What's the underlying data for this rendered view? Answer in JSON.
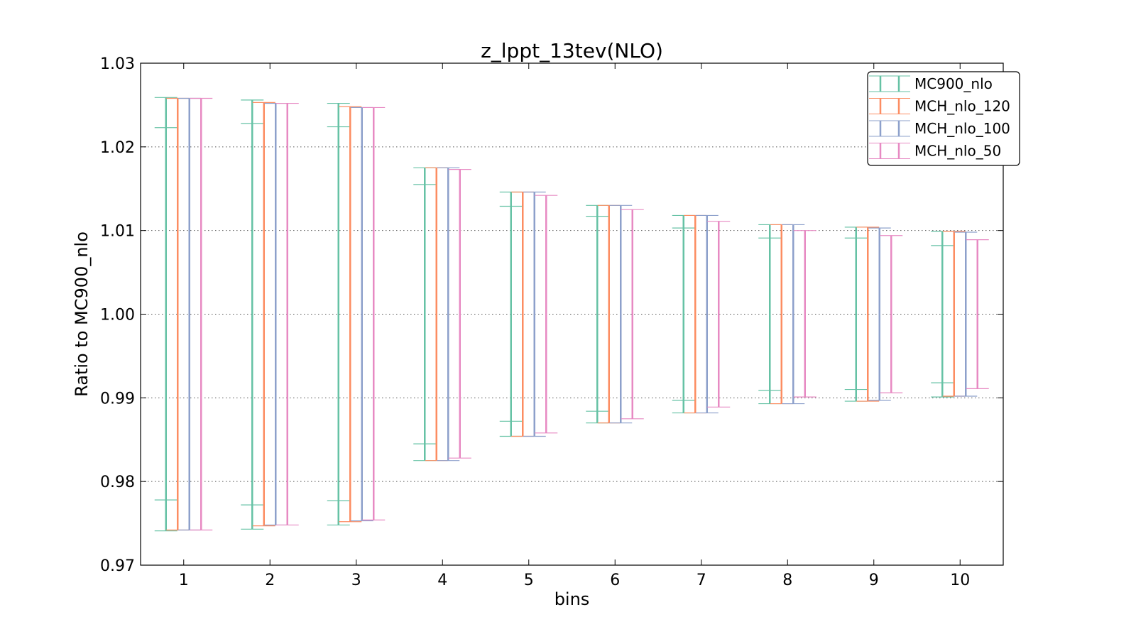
{
  "chart_data": {
    "type": "errorbar",
    "title": "z_lppt_13tev(NLO)",
    "xlabel": "bins",
    "ylabel": "Ratio to MC900_nlo",
    "xlim": [
      0.5,
      10.5
    ],
    "ylim": [
      0.97,
      1.03
    ],
    "x_ticks": [
      "1",
      "2",
      "3",
      "4",
      "5",
      "6",
      "7",
      "8",
      "9",
      "10"
    ],
    "y_ticks": [
      "0.97",
      "0.98",
      "0.99",
      "1.00",
      "1.01",
      "1.02",
      "1.03"
    ],
    "y_tick_values": [
      0.97,
      0.98,
      0.99,
      1.0,
      1.01,
      1.02,
      1.03
    ],
    "grid": "horizontal dotted",
    "legend_position": "top-right",
    "x": [
      1,
      2,
      3,
      4,
      5,
      6,
      7,
      8,
      9,
      10
    ],
    "series": [
      {
        "name": "MC900_nlo",
        "color": "#66c2a5",
        "lower": [
          0.9741,
          0.9743,
          0.9748,
          0.9825,
          0.9854,
          0.987,
          0.9882,
          0.9893,
          0.9896,
          0.9901
        ],
        "upper": [
          1.0259,
          1.0256,
          1.0252,
          1.0175,
          1.0146,
          1.013,
          1.0118,
          1.0107,
          1.0104,
          1.0099
        ],
        "inner_lower": [
          0.9778,
          0.9772,
          0.9777,
          0.9845,
          0.9872,
          0.9884,
          0.9897,
          0.9909,
          0.991,
          0.9918
        ],
        "inner_upper": [
          1.0223,
          1.0228,
          1.0224,
          1.0155,
          1.0129,
          1.0117,
          1.0103,
          1.0091,
          1.0091,
          1.0082
        ]
      },
      {
        "name": "MCH_nlo_120",
        "color": "#fc8d62",
        "lower": [
          0.9742,
          0.9747,
          0.9752,
          0.9825,
          0.9854,
          0.987,
          0.9882,
          0.9893,
          0.9896,
          0.9902
        ],
        "upper": [
          1.0258,
          1.0253,
          1.0248,
          1.0175,
          1.0146,
          1.013,
          1.0118,
          1.0107,
          1.0104,
          1.0099
        ]
      },
      {
        "name": "MCH_nlo_100",
        "color": "#8da0cb",
        "lower": [
          0.9742,
          0.9748,
          0.9753,
          0.9825,
          0.9854,
          0.987,
          0.9882,
          0.9893,
          0.9897,
          0.9902
        ],
        "upper": [
          1.0258,
          1.0252,
          1.0247,
          1.0175,
          1.0146,
          1.013,
          1.0118,
          1.0107,
          1.0103,
          1.0098
        ]
      },
      {
        "name": "MCH_nlo_50",
        "color": "#e78ac3",
        "lower": [
          0.9742,
          0.9748,
          0.9754,
          0.9828,
          0.9858,
          0.9875,
          0.9889,
          0.9901,
          0.9906,
          0.9911
        ],
        "upper": [
          1.0258,
          1.0252,
          1.0247,
          1.0173,
          1.0142,
          1.0125,
          1.0111,
          1.01,
          1.0094,
          1.0089
        ]
      }
    ]
  }
}
